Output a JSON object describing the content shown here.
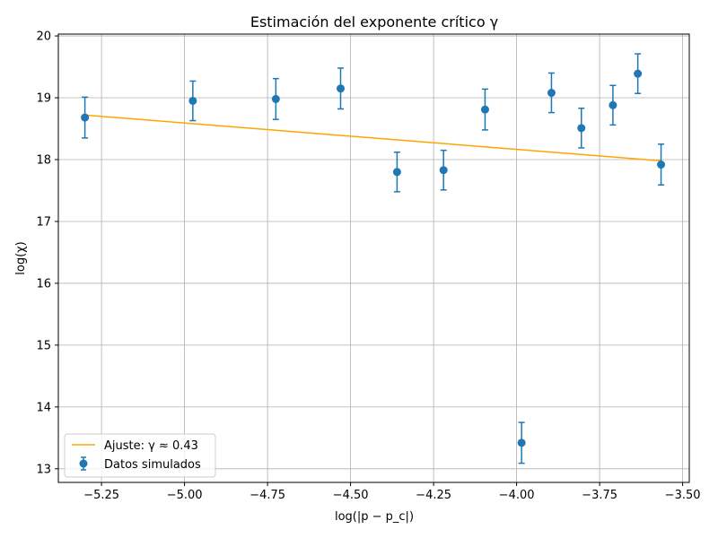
{
  "chart_data": {
    "type": "scatter",
    "title": "Estimación del exponente crítico γ",
    "xlabel": "log(|p − p_c|)",
    "ylabel": "log(χ)",
    "xlim": [
      -5.38,
      -3.48
    ],
    "ylim": [
      12.78,
      20.03
    ],
    "x_ticks": [
      -5.25,
      -5.0,
      -4.75,
      -4.5,
      -4.25,
      -4.0,
      -3.75,
      -3.5
    ],
    "x_tick_labels": [
      "−5.25",
      "−5.00",
      "−4.75",
      "−4.50",
      "−4.25",
      "−4.00",
      "−3.75",
      "−3.50"
    ],
    "y_ticks": [
      13,
      14,
      15,
      16,
      17,
      18,
      19,
      20
    ],
    "y_tick_labels": [
      "13",
      "14",
      "15",
      "16",
      "17",
      "18",
      "19",
      "20"
    ],
    "grid": true,
    "legend_position": "lower-left",
    "series": [
      {
        "name": "Datos simulados",
        "kind": "errorbar",
        "color": "#1f77b4",
        "x": [
          -5.3,
          -4.975,
          -4.725,
          -4.53,
          -4.36,
          -4.22,
          -4.095,
          -3.985,
          -3.895,
          -3.805,
          -3.71,
          -3.635,
          -3.565
        ],
        "y": [
          18.68,
          18.95,
          18.98,
          19.15,
          17.8,
          17.83,
          18.81,
          13.42,
          19.08,
          18.51,
          18.88,
          19.39,
          17.92
        ],
        "yerr": [
          0.33,
          0.32,
          0.33,
          0.33,
          0.32,
          0.32,
          0.33,
          0.33,
          0.32,
          0.32,
          0.32,
          0.32,
          0.33
        ]
      },
      {
        "name": "Ajuste: γ ≈ 0.43",
        "kind": "line",
        "color": "#ffa500",
        "x": [
          -5.3,
          -3.565
        ],
        "y": [
          18.72,
          17.98
        ]
      }
    ]
  }
}
